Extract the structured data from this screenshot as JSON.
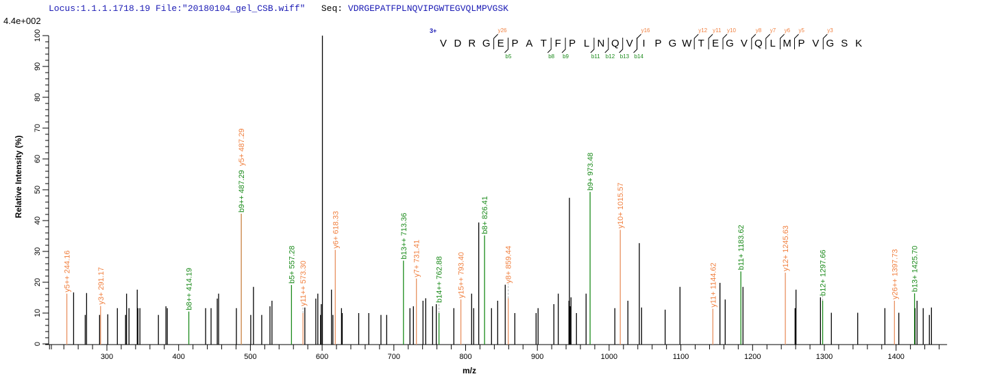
{
  "header": {
    "locus": "Locus:1.1.1.1718.19 File:\"20180104_gel_CSB.wiff\"",
    "seq_label": "Seq:",
    "sequence": "VDRGEPATFPLNQVIPGWTEGVQLMPVGSK"
  },
  "colors": {
    "b_ion": "#1a8a1a",
    "y_ion": "#f08040",
    "y_line": "#e8905f",
    "peak": "#000000",
    "seq_accent": "#1a1ab4",
    "connector": "#b0b0b0"
  },
  "sequence_map": {
    "charge": "3+",
    "residues": [
      "V",
      "D",
      "R",
      "G",
      "E",
      "P",
      "A",
      "T",
      "F",
      "P",
      "L",
      "N",
      "Q",
      "V",
      "I",
      "P",
      "G",
      "W",
      "T",
      "E",
      "G",
      "V",
      "Q",
      "L",
      "M",
      "P",
      "V",
      "G",
      "S",
      "K"
    ],
    "y_marks": [
      {
        "label": "y26",
        "before_index": 4
      },
      {
        "label": "y16",
        "before_index": 14
      },
      {
        "label": "y12",
        "before_index": 18
      },
      {
        "label": "y11",
        "before_index": 19
      },
      {
        "label": "y10",
        "before_index": 20
      },
      {
        "label": "y8",
        "before_index": 22
      },
      {
        "label": "y7",
        "before_index": 23
      },
      {
        "label": "y6",
        "before_index": 24
      },
      {
        "label": "y5",
        "before_index": 25
      },
      {
        "label": "y3",
        "before_index": 27
      }
    ],
    "b_marks": [
      {
        "label": "b5",
        "before_index": 5
      },
      {
        "label": "b8",
        "before_index": 8
      },
      {
        "label": "b9",
        "before_index": 9
      },
      {
        "label": "b11",
        "before_index": 11
      },
      {
        "label": "b12",
        "before_index": 12
      },
      {
        "label": "b13",
        "before_index": 13
      },
      {
        "label": "b14",
        "before_index": 14
      }
    ]
  },
  "chart_data": {
    "type": "bar",
    "subtype": "ms2-stick-spectrum",
    "max_intensity_label": "4.4e+002",
    "xlabel": "m/z",
    "ylabel": "Relative Intensity (%)",
    "xlim": [
      222,
      1473
    ],
    "ylim": [
      0,
      100
    ],
    "x_major_ticks": [
      300,
      400,
      500,
      600,
      700,
      800,
      900,
      1000,
      1100,
      1200,
      1300,
      1400
    ],
    "x_tick_labels": [
      "300",
      "400",
      "500",
      "600",
      "700",
      "800",
      "900",
      "1000",
      "1100",
      "1200",
      "1300",
      "1400"
    ],
    "x_minor_step": 20,
    "y_major_ticks": [
      0,
      10,
      20,
      30,
      40,
      50,
      60,
      70,
      80,
      90,
      100
    ],
    "y_tick_labels": [
      "0",
      "10",
      "20",
      "30",
      "40",
      "50",
      "60",
      "70",
      "80",
      "90",
      "100"
    ],
    "y_minor_step": 2,
    "grid": false,
    "peaks": [
      {
        "mz": 253.6,
        "i": 16.7
      },
      {
        "mz": 269.8,
        "i": 9.4
      },
      {
        "mz": 271.7,
        "i": 16.5
      },
      {
        "mz": 289.8,
        "i": 9.4
      },
      {
        "mz": 301.2,
        "i": 9.6
      },
      {
        "mz": 314.6,
        "i": 11.6
      },
      {
        "mz": 326.0,
        "i": 9.4
      },
      {
        "mz": 327.4,
        "i": 16.3
      },
      {
        "mz": 330.8,
        "i": 11.6
      },
      {
        "mz": 342.3,
        "i": 17.6
      },
      {
        "mz": 343.2,
        "i": 11.6
      },
      {
        "mz": 346.0,
        "i": 11.6
      },
      {
        "mz": 371.8,
        "i": 9.4
      },
      {
        "mz": 382.3,
        "i": 12.2
      },
      {
        "mz": 384.2,
        "i": 11.6
      },
      {
        "mz": 437.6,
        "i": 11.6
      },
      {
        "mz": 445.2,
        "i": 11.6
      },
      {
        "mz": 453.8,
        "i": 14.7
      },
      {
        "mz": 455.7,
        "i": 16.3
      },
      {
        "mz": 480.5,
        "i": 11.6
      },
      {
        "mz": 500.5,
        "i": 9.4
      },
      {
        "mz": 504.3,
        "i": 18.5
      },
      {
        "mz": 515.8,
        "i": 9.4
      },
      {
        "mz": 527.3,
        "i": 12.2
      },
      {
        "mz": 530.1,
        "i": 14.0
      },
      {
        "mz": 575.9,
        "i": 11.8
      },
      {
        "mz": 591.2,
        "i": 14.7
      },
      {
        "mz": 594.0,
        "i": 16.3
      },
      {
        "mz": 597.8,
        "i": 9.4
      },
      {
        "mz": 598.8,
        "i": 12.9
      },
      {
        "mz": 600.4,
        "i": 100.0
      },
      {
        "mz": 613.0,
        "i": 17.6
      },
      {
        "mz": 615.0,
        "i": 9.4
      },
      {
        "mz": 627.0,
        "i": 11.6
      },
      {
        "mz": 628.0,
        "i": 10.0
      },
      {
        "mz": 651.0,
        "i": 10.0
      },
      {
        "mz": 665.0,
        "i": 10.0
      },
      {
        "mz": 682.0,
        "i": 9.4
      },
      {
        "mz": 690.0,
        "i": 9.4
      },
      {
        "mz": 722.4,
        "i": 11.6
      },
      {
        "mz": 727.2,
        "i": 12.2
      },
      {
        "mz": 740.6,
        "i": 14.0
      },
      {
        "mz": 744.4,
        "i": 14.8
      },
      {
        "mz": 754.0,
        "i": 12.2
      },
      {
        "mz": 759.1,
        "i": 12.9
      },
      {
        "mz": 783.6,
        "i": 11.6
      },
      {
        "mz": 808.4,
        "i": 16.3
      },
      {
        "mz": 811.3,
        "i": 11.6
      },
      {
        "mz": 818.3,
        "i": 39.4
      },
      {
        "mz": 836.1,
        "i": 11.6
      },
      {
        "mz": 844.7,
        "i": 14.0
      },
      {
        "mz": 855.2,
        "i": 19.2
      },
      {
        "mz": 868.6,
        "i": 10.0
      },
      {
        "mz": 898.2,
        "i": 10.0
      },
      {
        "mz": 901.0,
        "i": 11.6
      },
      {
        "mz": 923.0,
        "i": 12.9
      },
      {
        "mz": 929.1,
        "i": 16.3
      },
      {
        "mz": 944.0,
        "i": 14.0
      },
      {
        "mz": 944.7,
        "i": 47.4
      },
      {
        "mz": 945.7,
        "i": 12.2
      },
      {
        "mz": 946.9,
        "i": 15.1
      },
      {
        "mz": 954.5,
        "i": 10.0
      },
      {
        "mz": 967.9,
        "i": 16.3
      },
      {
        "mz": 1008.0,
        "i": 11.6
      },
      {
        "mz": 1026.2,
        "i": 14.0
      },
      {
        "mz": 1042.1,
        "i": 32.7
      },
      {
        "mz": 1045.3,
        "i": 11.8
      },
      {
        "mz": 1078.1,
        "i": 11.1
      },
      {
        "mz": 1098.8,
        "i": 18.5
      },
      {
        "mz": 1154.5,
        "i": 19.8
      },
      {
        "mz": 1161.8,
        "i": 14.4
      },
      {
        "mz": 1186.6,
        "i": 18.5
      },
      {
        "mz": 1259.2,
        "i": 11.6
      },
      {
        "mz": 1260.5,
        "i": 17.6
      },
      {
        "mz": 1294.6,
        "i": 15.1
      },
      {
        "mz": 1309.8,
        "i": 10.1
      },
      {
        "mz": 1346.5,
        "i": 10.1
      },
      {
        "mz": 1384.4,
        "i": 11.6
      },
      {
        "mz": 1403.8,
        "i": 10.1
      },
      {
        "mz": 1426.4,
        "i": 11.6
      },
      {
        "mz": 1429.2,
        "i": 14.0
      },
      {
        "mz": 1437.8,
        "i": 11.6
      },
      {
        "mz": 1446.4,
        "i": 9.4
      },
      {
        "mz": 1449.3,
        "i": 11.8
      }
    ],
    "annotations": [
      {
        "label": "y5++ 244.16",
        "mz": 244.16,
        "i": 16.3,
        "ion": "y"
      },
      {
        "label": "y3+ 291.17",
        "mz": 291.17,
        "i": 12.3,
        "ion": "y"
      },
      {
        "label": "b8++ 414.19",
        "mz": 414.19,
        "i": 10.5,
        "ion": "b"
      },
      {
        "label": "b9++ 487.29",
        "mz": 487.29,
        "i": 42.2,
        "ion": "b"
      },
      {
        "label": "y5+ 487.29",
        "mz": 487.29,
        "i": 42.2,
        "ion": "y"
      },
      {
        "label": "b5+ 557.28",
        "mz": 557.28,
        "i": 19.1,
        "ion": "b"
      },
      {
        "label": "y11++ 573.30",
        "mz": 573.3,
        "i": 10.0,
        "ion": "y"
      },
      {
        "label": "y6+ 618.33",
        "mz": 618.33,
        "i": 30.5,
        "ion": "y"
      },
      {
        "label": "b13++ 713.36",
        "mz": 713.36,
        "i": 27.0,
        "ion": "b"
      },
      {
        "label": "y7+ 731.41",
        "mz": 731.41,
        "i": 21.2,
        "ion": "y"
      },
      {
        "label": "b14++ 762.88",
        "mz": 762.88,
        "i": 10.0,
        "ion": "b"
      },
      {
        "label": "y15++ 793.40",
        "mz": 793.4,
        "i": 14.4,
        "ion": "y"
      },
      {
        "label": "b8+ 826.41",
        "mz": 826.41,
        "i": 35.2,
        "ion": "b"
      },
      {
        "label": "y8+ 859.44",
        "mz": 859.44,
        "i": 14.8,
        "ion": "y"
      },
      {
        "label": "b9+ 973.48",
        "mz": 973.48,
        "i": 49.3,
        "ion": "b"
      },
      {
        "label": "y10+ 1015.57",
        "mz": 1015.57,
        "i": 37.0,
        "ion": "y"
      },
      {
        "label": "y11+ 1144.62",
        "mz": 1144.62,
        "i": 11.4,
        "ion": "y"
      },
      {
        "label": "b11+ 1183.62",
        "mz": 1183.62,
        "i": 23.5,
        "ion": "b"
      },
      {
        "label": "y12+ 1245.63",
        "mz": 1245.63,
        "i": 23.1,
        "ion": "y"
      },
      {
        "label": "b12+ 1297.66",
        "mz": 1297.66,
        "i": 14.0,
        "ion": "b"
      },
      {
        "label": "y26++ 1397.73",
        "mz": 1397.73,
        "i": 14.0,
        "ion": "y"
      },
      {
        "label": "b13+ 1425.70",
        "mz": 1425.7,
        "i": 16.4,
        "ion": "b"
      }
    ]
  }
}
